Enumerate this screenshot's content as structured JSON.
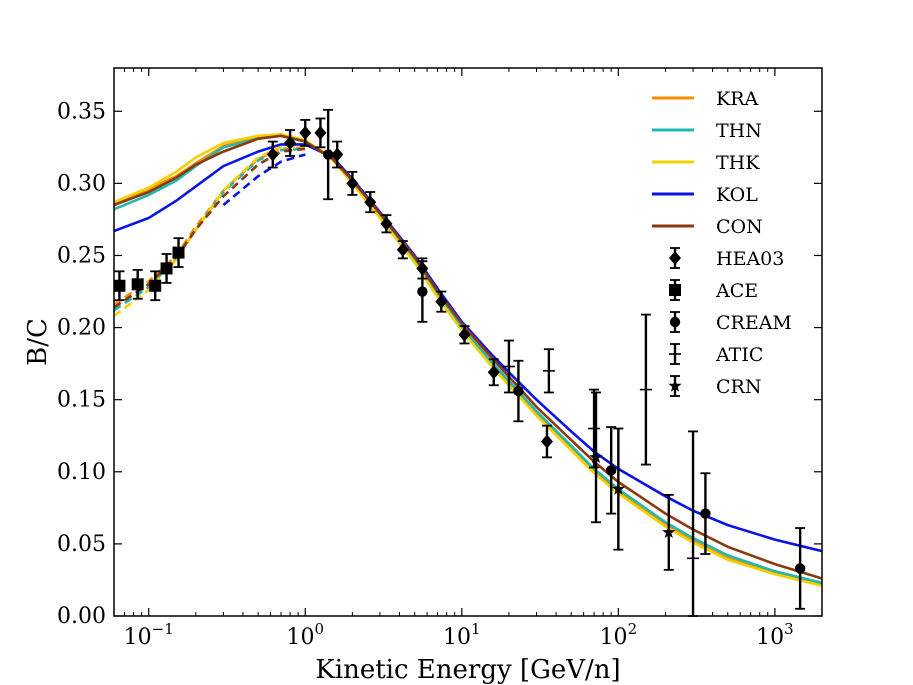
{
  "chart_data": {
    "type": "line",
    "xlabel": "Kinetic Energy [GeV/n]",
    "ylabel": "B/C",
    "xscale": "log",
    "xlim": [
      0.06,
      2000
    ],
    "ylim": [
      0.0,
      0.38
    ],
    "grid": false,
    "legend_placement": "top-right",
    "y_ticks": [
      "0.00",
      "0.05",
      "0.10",
      "0.15",
      "0.20",
      "0.25",
      "0.30",
      "0.35"
    ],
    "x_ticks": [
      {
        "base": "10",
        "exp": "−1",
        "value": 0.1
      },
      {
        "base": "10",
        "exp": "0",
        "value": 1
      },
      {
        "base": "10",
        "exp": "1",
        "value": 10
      },
      {
        "base": "10",
        "exp": "2",
        "value": 100
      },
      {
        "base": "10",
        "exp": "3",
        "value": 1000
      }
    ],
    "models": [
      {
        "name": "KRA",
        "color": "#ff8c00",
        "solid": [
          [
            0.06,
            0.286
          ],
          [
            0.1,
            0.296
          ],
          [
            0.15,
            0.305
          ],
          [
            0.2,
            0.314
          ],
          [
            0.3,
            0.326
          ],
          [
            0.5,
            0.332
          ],
          [
            0.7,
            0.334
          ],
          [
            1.0,
            0.329
          ],
          [
            1.5,
            0.318
          ],
          [
            2,
            0.302
          ],
          [
            3,
            0.278
          ],
          [
            5,
            0.248
          ],
          [
            7,
            0.224
          ],
          [
            10,
            0.201
          ],
          [
            15,
            0.178
          ],
          [
            20,
            0.162
          ],
          [
            30,
            0.14
          ],
          [
            50,
            0.116
          ],
          [
            70,
            0.1
          ],
          [
            100,
            0.086
          ],
          [
            200,
            0.063
          ],
          [
            300,
            0.052
          ],
          [
            500,
            0.04
          ],
          [
            1000,
            0.03
          ],
          [
            2000,
            0.022
          ]
        ],
        "dashed": [
          [
            0.06,
            0.216
          ],
          [
            0.1,
            0.232
          ],
          [
            0.15,
            0.25
          ],
          [
            0.2,
            0.27
          ],
          [
            0.3,
            0.295
          ],
          [
            0.5,
            0.317
          ],
          [
            0.7,
            0.324
          ],
          [
            1.0,
            0.325
          ]
        ]
      },
      {
        "name": "THN",
        "color": "#20b8b0",
        "solid": [
          [
            0.06,
            0.282
          ],
          [
            0.1,
            0.292
          ],
          [
            0.15,
            0.302
          ],
          [
            0.2,
            0.312
          ],
          [
            0.3,
            0.325
          ],
          [
            0.5,
            0.331
          ],
          [
            0.7,
            0.333
          ],
          [
            1.0,
            0.329
          ],
          [
            1.5,
            0.317
          ],
          [
            2,
            0.301
          ],
          [
            3,
            0.277
          ],
          [
            5,
            0.247
          ],
          [
            7,
            0.223
          ],
          [
            10,
            0.2
          ],
          [
            15,
            0.178
          ],
          [
            20,
            0.163
          ],
          [
            30,
            0.142
          ],
          [
            50,
            0.118
          ],
          [
            70,
            0.102
          ],
          [
            100,
            0.088
          ],
          [
            200,
            0.065
          ],
          [
            300,
            0.054
          ],
          [
            500,
            0.042
          ],
          [
            1000,
            0.031
          ],
          [
            2000,
            0.023
          ]
        ],
        "dashed": [
          [
            0.06,
            0.212
          ],
          [
            0.1,
            0.228
          ],
          [
            0.15,
            0.248
          ],
          [
            0.2,
            0.268
          ],
          [
            0.3,
            0.294
          ],
          [
            0.5,
            0.316
          ],
          [
            0.7,
            0.323
          ],
          [
            1.0,
            0.324
          ]
        ]
      },
      {
        "name": "THK",
        "color": "#f5d000",
        "solid": [
          [
            0.06,
            0.287
          ],
          [
            0.1,
            0.297
          ],
          [
            0.15,
            0.308
          ],
          [
            0.2,
            0.318
          ],
          [
            0.3,
            0.328
          ],
          [
            0.5,
            0.333
          ],
          [
            0.7,
            0.334
          ],
          [
            1.0,
            0.33
          ],
          [
            1.5,
            0.316
          ],
          [
            2,
            0.3
          ],
          [
            3,
            0.276
          ],
          [
            5,
            0.245
          ],
          [
            7,
            0.221
          ],
          [
            10,
            0.198
          ],
          [
            15,
            0.175
          ],
          [
            20,
            0.16
          ],
          [
            30,
            0.139
          ],
          [
            50,
            0.115
          ],
          [
            70,
            0.099
          ],
          [
            100,
            0.085
          ],
          [
            200,
            0.062
          ],
          [
            300,
            0.051
          ],
          [
            500,
            0.039
          ],
          [
            1000,
            0.029
          ],
          [
            2000,
            0.021
          ]
        ],
        "dashed": [
          [
            0.06,
            0.208
          ],
          [
            0.1,
            0.226
          ],
          [
            0.15,
            0.247
          ],
          [
            0.2,
            0.268
          ],
          [
            0.3,
            0.295
          ],
          [
            0.5,
            0.318
          ],
          [
            0.7,
            0.325
          ],
          [
            1.0,
            0.326
          ]
        ]
      },
      {
        "name": "KOL",
        "color": "#0a14e6",
        "solid": [
          [
            0.06,
            0.267
          ],
          [
            0.1,
            0.276
          ],
          [
            0.15,
            0.288
          ],
          [
            0.2,
            0.298
          ],
          [
            0.3,
            0.312
          ],
          [
            0.5,
            0.322
          ],
          [
            0.7,
            0.327
          ],
          [
            1.0,
            0.327
          ],
          [
            1.5,
            0.318
          ],
          [
            2,
            0.303
          ],
          [
            3,
            0.28
          ],
          [
            5,
            0.25
          ],
          [
            7,
            0.227
          ],
          [
            10,
            0.204
          ],
          [
            15,
            0.183
          ],
          [
            20,
            0.169
          ],
          [
            30,
            0.15
          ],
          [
            50,
            0.128
          ],
          [
            70,
            0.114
          ],
          [
            100,
            0.102
          ],
          [
            200,
            0.083
          ],
          [
            300,
            0.073
          ],
          [
            500,
            0.063
          ],
          [
            1000,
            0.053
          ],
          [
            2000,
            0.045
          ]
        ],
        "dashed": [
          [
            0.3,
            0.285
          ],
          [
            0.5,
            0.305
          ],
          [
            0.7,
            0.315
          ],
          [
            1.0,
            0.32
          ]
        ]
      },
      {
        "name": "CON",
        "color": "#8b3a0f",
        "solid": [
          [
            0.06,
            0.285
          ],
          [
            0.1,
            0.294
          ],
          [
            0.15,
            0.304
          ],
          [
            0.2,
            0.313
          ],
          [
            0.3,
            0.322
          ],
          [
            0.5,
            0.331
          ],
          [
            0.7,
            0.333
          ],
          [
            1.0,
            0.329
          ],
          [
            1.5,
            0.317
          ],
          [
            2,
            0.302
          ],
          [
            3,
            0.279
          ],
          [
            5,
            0.249
          ],
          [
            7,
            0.225
          ],
          [
            10,
            0.203
          ],
          [
            15,
            0.181
          ],
          [
            20,
            0.166
          ],
          [
            30,
            0.145
          ],
          [
            50,
            0.122
          ],
          [
            70,
            0.107
          ],
          [
            100,
            0.093
          ],
          [
            200,
            0.071
          ],
          [
            300,
            0.06
          ],
          [
            500,
            0.048
          ],
          [
            1000,
            0.036
          ],
          [
            2000,
            0.026
          ]
        ],
        "dashed": [
          [
            0.06,
            0.214
          ],
          [
            0.1,
            0.23
          ],
          [
            0.15,
            0.249
          ],
          [
            0.2,
            0.268
          ],
          [
            0.3,
            0.291
          ],
          [
            0.5,
            0.313
          ],
          [
            0.7,
            0.322
          ],
          [
            1.0,
            0.324
          ]
        ]
      }
    ],
    "datasets": [
      {
        "name": "HEA03",
        "marker": "diamond",
        "points": [
          [
            0.62,
            0.32,
            0.009
          ],
          [
            0.8,
            0.328,
            0.009
          ],
          [
            1.0,
            0.335,
            0.009
          ],
          [
            1.25,
            0.335,
            0.01
          ],
          [
            1.6,
            0.32,
            0.009
          ],
          [
            2.0,
            0.3,
            0.008
          ],
          [
            2.6,
            0.287,
            0.007
          ],
          [
            3.3,
            0.272,
            0.006
          ],
          [
            4.2,
            0.254,
            0.006
          ],
          [
            5.6,
            0.241,
            0.007
          ],
          [
            7.4,
            0.218,
            0.007
          ],
          [
            10.4,
            0.195,
            0.006
          ],
          [
            16,
            0.169,
            0.009
          ],
          [
            35,
            0.121,
            0.011
          ]
        ]
      },
      {
        "name": "ACE",
        "marker": "square",
        "points": [
          [
            0.065,
            0.229,
            0.01
          ],
          [
            0.085,
            0.23,
            0.01
          ],
          [
            0.11,
            0.229,
            0.01
          ],
          [
            0.13,
            0.241,
            0.01
          ],
          [
            0.155,
            0.252,
            0.01
          ]
        ]
      },
      {
        "name": "CREAM",
        "marker": "circle",
        "points": [
          [
            1.4,
            0.32,
            0.031
          ],
          [
            5.6,
            0.225,
            0.021
          ],
          [
            23,
            0.156,
            0.021
          ],
          [
            90,
            0.101,
            0.03
          ],
          [
            360,
            0.071,
            0.028
          ],
          [
            1450,
            0.033,
            0.028
          ]
        ]
      },
      {
        "name": "ATIC",
        "marker": "none",
        "points": [
          [
            20,
            0.173,
            0.018
          ],
          [
            36,
            0.17,
            0.015
          ],
          [
            70,
            0.13,
            0.027
          ],
          [
            150,
            0.157,
            0.052
          ],
          [
            300,
            0.04,
            0.088
          ]
        ]
      },
      {
        "name": "CRN",
        "marker": "star",
        "points": [
          [
            72,
            0.11,
            0.045
          ],
          [
            100,
            0.088,
            0.042
          ],
          [
            210,
            0.058,
            0.026
          ]
        ]
      }
    ],
    "legend": [
      "KRA",
      "THN",
      "THK",
      "KOL",
      "CON",
      "HEA03",
      "ACE",
      "CREAM",
      "ATIC",
      "CRN"
    ]
  }
}
